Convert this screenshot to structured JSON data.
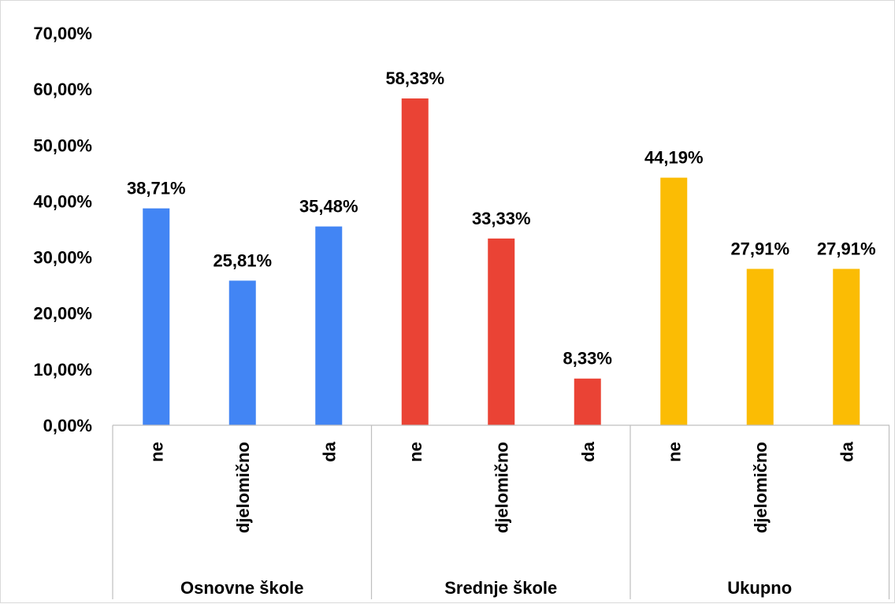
{
  "chart_data": {
    "type": "bar",
    "title": "",
    "xlabel": "",
    "ylabel": "",
    "ylim": [
      0,
      70
    ],
    "y_ticks": [
      "0,00%",
      "10,00%",
      "20,00%",
      "30,00%",
      "40,00%",
      "50,00%",
      "60,00%",
      "70,00%"
    ],
    "y_tick_values": [
      0,
      10,
      20,
      30,
      40,
      50,
      60,
      70
    ],
    "grid": false,
    "legend": "none",
    "groups": [
      {
        "name": "Osnovne škole",
        "color": "#4285F4",
        "categories": [
          "ne",
          "djelomično",
          "da"
        ],
        "values": [
          38.71,
          25.81,
          35.48
        ],
        "labels": [
          "38,71%",
          "25,81%",
          "35,48%"
        ]
      },
      {
        "name": "Srednje škole",
        "color": "#EA4335",
        "categories": [
          "ne",
          "djelomično",
          "da"
        ],
        "values": [
          58.33,
          33.33,
          8.33
        ],
        "labels": [
          "58,33%",
          "33,33%",
          "8,33%"
        ]
      },
      {
        "name": "Ukupno",
        "color": "#FBBC04",
        "categories": [
          "ne",
          "djelomično",
          "da"
        ],
        "values": [
          44.19,
          27.91,
          27.91
        ],
        "labels": [
          "44,19%",
          "27,91%",
          "27,91%"
        ]
      }
    ]
  }
}
